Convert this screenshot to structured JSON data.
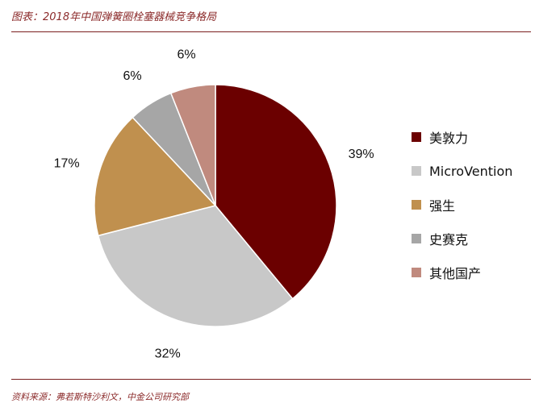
{
  "title": "图表：2018年中国弹簧圈栓塞器械竞争格局",
  "source": "资料来源：弗若斯特沙利文，中金公司研究部",
  "chart_data": {
    "type": "pie",
    "categories": [
      "美敦力",
      "MicroVention",
      "强生",
      "史赛克",
      "其他国产"
    ],
    "values": [
      39,
      32,
      17,
      6,
      6
    ],
    "labels": [
      "39%",
      "32%",
      "17%",
      "6%",
      "6%"
    ],
    "colors": [
      "#6B0000",
      "#C8C8C8",
      "#C0904E",
      "#A6A6A6",
      "#C08A7E"
    ],
    "legend": "right"
  }
}
